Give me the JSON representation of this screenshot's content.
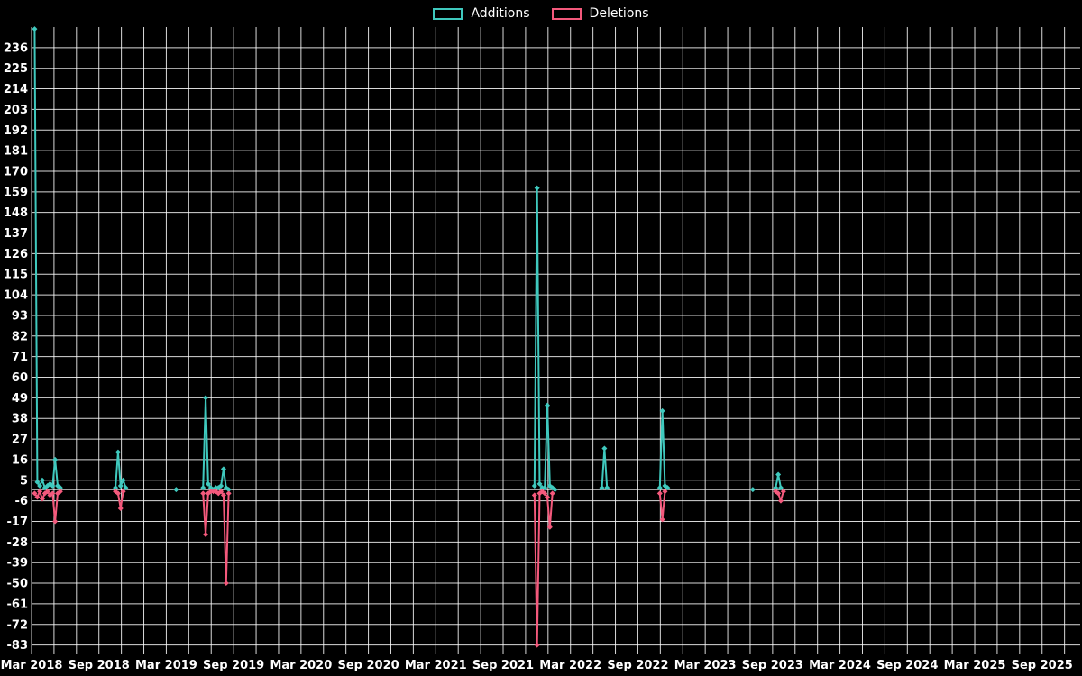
{
  "chart_data": {
    "type": "line",
    "title": "",
    "legend": {
      "position": "top-center"
    },
    "background": "#000000",
    "grid_color": "#ffffff",
    "text_color": "#ffffff",
    "x_range": [
      2018.167,
      2025.95
    ],
    "y_range": [
      -88,
      247
    ],
    "x_grid_step": 0.16667,
    "y_ticks": [
      236,
      225,
      214,
      203,
      192,
      181,
      170,
      159,
      148,
      137,
      126,
      115,
      104,
      93,
      82,
      71,
      60,
      49,
      38,
      27,
      16,
      5,
      -6,
      -17,
      -28,
      -39,
      -50,
      -61,
      -72,
      -83
    ],
    "x_ticks": [
      {
        "label": "Mar 2018",
        "pos": 2018.167
      },
      {
        "label": "Sep 2018",
        "pos": 2018.667
      },
      {
        "label": "Mar 2019",
        "pos": 2019.167
      },
      {
        "label": "Sep 2019",
        "pos": 2019.667
      },
      {
        "label": "Mar 2020",
        "pos": 2020.167
      },
      {
        "label": "Sep 2020",
        "pos": 2020.667
      },
      {
        "label": "Mar 2021",
        "pos": 2021.167
      },
      {
        "label": "Sep 2021",
        "pos": 2021.667
      },
      {
        "label": "Mar 2022",
        "pos": 2022.167
      },
      {
        "label": "Sep 2022",
        "pos": 2022.667
      },
      {
        "label": "Mar 2023",
        "pos": 2023.167
      },
      {
        "label": "Sep 2023",
        "pos": 2023.667
      },
      {
        "label": "Mar 2024",
        "pos": 2024.167
      },
      {
        "label": "Sep 2024",
        "pos": 2024.667
      },
      {
        "label": "Mar 2025",
        "pos": 2025.167
      },
      {
        "label": "Sep 2025",
        "pos": 2025.667
      }
    ],
    "series": [
      {
        "name": "Additions",
        "key": "additions",
        "color": "#3fc9be",
        "segments": [
          [
            [
              2018.19,
              246
            ],
            [
              2018.21,
              4
            ],
            [
              2018.228,
              2
            ],
            [
              2018.247,
              5
            ],
            [
              2018.266,
              1
            ],
            [
              2018.285,
              2
            ],
            [
              2018.304,
              3
            ],
            [
              2018.323,
              2
            ],
            [
              2018.342,
              16
            ],
            [
              2018.361,
              2
            ],
            [
              2018.38,
              1
            ]
          ],
          [
            [
              2018.79,
              1
            ],
            [
              2018.809,
              20
            ],
            [
              2018.828,
              2
            ],
            [
              2018.847,
              5
            ],
            [
              2018.866,
              1
            ]
          ],
          [
            [
              2019.24,
              0
            ]
          ],
          [
            [
              2019.44,
              1
            ],
            [
              2019.459,
              49
            ],
            [
              2019.478,
              3
            ],
            [
              2019.497,
              1
            ],
            [
              2019.516,
              0
            ],
            [
              2019.535,
              1
            ],
            [
              2019.554,
              1
            ],
            [
              2019.573,
              2
            ],
            [
              2019.592,
              11
            ],
            [
              2019.611,
              1
            ],
            [
              2019.63,
              0
            ]
          ],
          [
            [
              2021.9,
              2
            ],
            [
              2021.919,
              161
            ],
            [
              2021.938,
              3
            ],
            [
              2021.957,
              1
            ],
            [
              2021.976,
              1
            ],
            [
              2021.995,
              45
            ],
            [
              2022.014,
              2
            ],
            [
              2022.033,
              1
            ],
            [
              2022.052,
              0
            ]
          ],
          [
            [
              2022.4,
              1
            ],
            [
              2022.419,
              22
            ],
            [
              2022.438,
              1
            ]
          ],
          [
            [
              2022.83,
              1
            ],
            [
              2022.849,
              42
            ],
            [
              2022.868,
              2
            ],
            [
              2022.887,
              1
            ]
          ],
          [
            [
              2023.52,
              0
            ]
          ],
          [
            [
              2023.69,
              1
            ],
            [
              2023.709,
              8
            ],
            [
              2023.728,
              1
            ]
          ]
        ]
      },
      {
        "name": "Deletions",
        "key": "deletions",
        "color": "#f4597c",
        "segments": [
          [
            [
              2018.19,
              -2
            ],
            [
              2018.21,
              -4
            ],
            [
              2018.228,
              -1
            ],
            [
              2018.247,
              -5
            ],
            [
              2018.266,
              -2
            ],
            [
              2018.285,
              -1
            ],
            [
              2018.304,
              -3
            ],
            [
              2018.323,
              -2
            ],
            [
              2018.342,
              -17
            ],
            [
              2018.361,
              -2
            ],
            [
              2018.38,
              -1
            ]
          ],
          [
            [
              2018.79,
              -1
            ],
            [
              2018.809,
              -2
            ],
            [
              2018.828,
              -10
            ],
            [
              2018.847,
              -1
            ]
          ],
          [
            [
              2019.44,
              -2
            ],
            [
              2019.459,
              -24
            ],
            [
              2019.478,
              -2
            ],
            [
              2019.497,
              -1
            ],
            [
              2019.516,
              -1
            ],
            [
              2019.535,
              -1
            ],
            [
              2019.554,
              -2
            ],
            [
              2019.573,
              -1
            ],
            [
              2019.592,
              -3
            ],
            [
              2019.611,
              -50
            ],
            [
              2019.63,
              -2
            ]
          ],
          [
            [
              2021.9,
              -3
            ],
            [
              2021.919,
              -83
            ],
            [
              2021.938,
              -2
            ],
            [
              2021.957,
              -1
            ],
            [
              2021.976,
              -2
            ],
            [
              2021.995,
              -4
            ],
            [
              2022.014,
              -20
            ],
            [
              2022.033,
              -2
            ]
          ],
          [
            [
              2022.83,
              -2
            ],
            [
              2022.849,
              -16
            ],
            [
              2022.868,
              -1
            ]
          ],
          [
            [
              2023.69,
              -1
            ],
            [
              2023.709,
              -2
            ],
            [
              2023.728,
              -6
            ],
            [
              2023.747,
              -1
            ]
          ]
        ]
      }
    ]
  }
}
